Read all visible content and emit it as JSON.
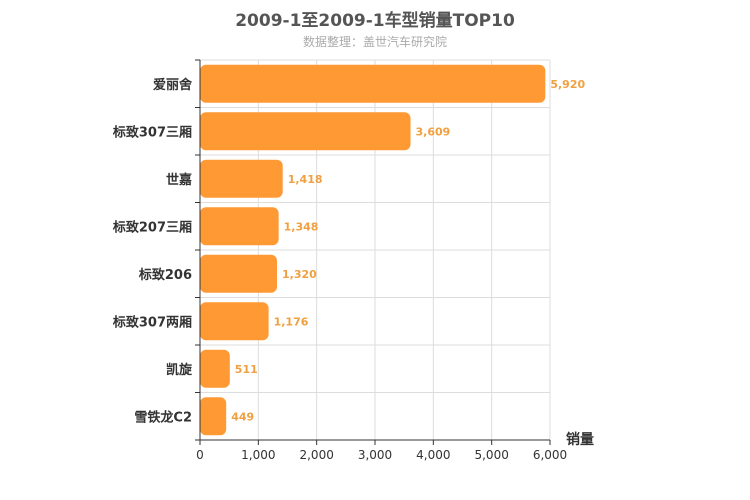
{
  "header": {
    "title": "2009-1至2009-1车型销量TOP10",
    "subtitle": "数据整理：盖世汽车研究院"
  },
  "chart_data": {
    "type": "bar",
    "orientation": "horizontal",
    "categories": [
      "爱丽舍",
      "标致307三厢",
      "世嘉",
      "标致207三厢",
      "标致206",
      "标致307两厢",
      "凯旋",
      "雪铁龙C2"
    ],
    "values": [
      5920,
      3609,
      1418,
      1348,
      1320,
      1176,
      511,
      449
    ],
    "value_labels": [
      "5,920",
      "3,609",
      "1,418",
      "1,348",
      "1,320",
      "1,176",
      "511",
      "449"
    ],
    "xlabel": "销量",
    "ylabel": "",
    "xlim": [
      0,
      6000
    ],
    "xticks": [
      0,
      1000,
      2000,
      3000,
      4000,
      5000,
      6000
    ],
    "xtick_labels": [
      "0",
      "1,000",
      "2,000",
      "3,000",
      "4,000",
      "5,000",
      "6,000"
    ],
    "grid": true,
    "bar_color": "#ff9933",
    "value_label_color": "#f0a040"
  }
}
